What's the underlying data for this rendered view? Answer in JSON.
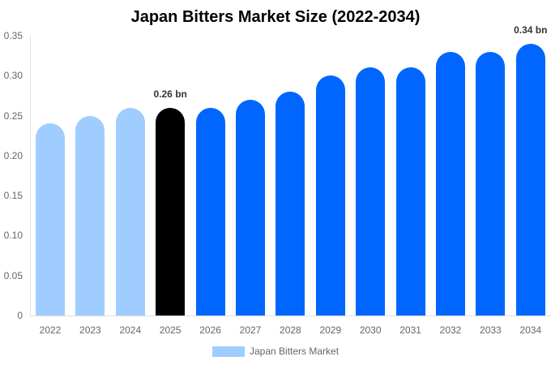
{
  "chart_data": {
    "type": "bar",
    "title": "Japan Bitters Market Size (2022-2034)",
    "xlabel": "",
    "ylabel": "",
    "ylim": [
      0,
      0.35
    ],
    "yticks": [
      "0",
      "0.05",
      "0.10",
      "0.15",
      "0.20",
      "0.25",
      "0.30",
      "0.35"
    ],
    "categories": [
      "2022",
      "2023",
      "2024",
      "2025",
      "2026",
      "2027",
      "2028",
      "2029",
      "2030",
      "2031",
      "2032",
      "2033",
      "2034"
    ],
    "series": [
      {
        "name": "Japan Bitters Market",
        "values": [
          0.24,
          0.25,
          0.26,
          0.26,
          0.26,
          0.27,
          0.28,
          0.3,
          0.31,
          0.31,
          0.33,
          0.33,
          0.34
        ]
      }
    ],
    "bar_colors": [
      "#a0cdff",
      "#a0cdff",
      "#a0cdff",
      "#000000",
      "#0066ff",
      "#0066ff",
      "#0066ff",
      "#0066ff",
      "#0066ff",
      "#0066ff",
      "#0066ff",
      "#0066ff",
      "#0066ff"
    ],
    "annotations": [
      {
        "category": "2025",
        "text": "0.26 bn"
      },
      {
        "category": "2034",
        "text": "0.34 bn"
      }
    ],
    "legend": {
      "position": "bottom",
      "entries": [
        "Japan Bitters Market"
      ],
      "color": "#a0cdff"
    },
    "grid": false
  }
}
